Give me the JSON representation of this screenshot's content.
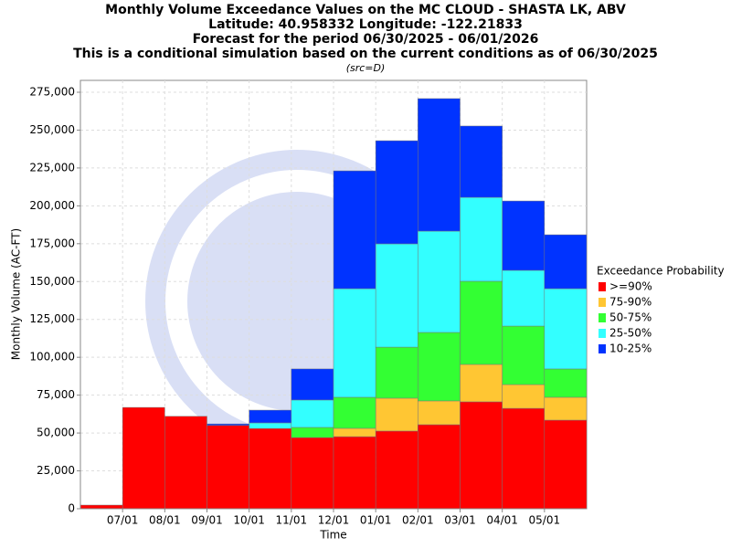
{
  "chart_data": {
    "type": "stacked_bar",
    "title_lines": [
      "Monthly Volume Exceedance Values on the MC CLOUD - SHASTA LK, ABV",
      "Latitude: 40.958332 Longitude: -122.21833",
      "Forecast for the period 06/30/2025 - 06/01/2026",
      "This is a conditional simulation based on the current conditions as of 06/30/2025"
    ],
    "note": "(src=D)",
    "x_label": "Time",
    "y_label": "Monthly Volume (AC-FT)",
    "legend_title": "Exceedance Probability",
    "categories": [
      null,
      null,
      null,
      null,
      null,
      null,
      null,
      null,
      null,
      null,
      null,
      null
    ],
    "xticks": [
      "07/01",
      "08/01",
      "09/01",
      "10/01",
      "11/01",
      "12/01",
      "01/01",
      "02/01",
      "03/01",
      "04/01",
      "05/01"
    ],
    "series": [
      {
        "name": ">=90%",
        "color": "#ff0000",
        "values": [
          2400,
          66900,
          61000,
          55000,
          53000,
          47000,
          47600,
          51300,
          55500,
          70600,
          66300,
          58500
        ]
      },
      {
        "name": "75-90%",
        "color": "#ffc633",
        "values": [
          0,
          0,
          0,
          0,
          0,
          0,
          5500,
          21700,
          15700,
          24700,
          15700,
          15100
        ]
      },
      {
        "name": "50-75%",
        "color": "#33ff33",
        "values": [
          0,
          0,
          0,
          0,
          0,
          6700,
          20500,
          33700,
          45200,
          54900,
          38600,
          18700
        ]
      },
      {
        "name": "25-50%",
        "color": "#33ffff",
        "values": [
          0,
          0,
          0,
          0,
          3700,
          18100,
          71700,
          68200,
          66900,
          55400,
          36800,
          53000
        ]
      },
      {
        "name": "10-25%",
        "color": "#0033ff",
        "values": [
          0,
          0,
          0,
          1000,
          8400,
          20500,
          77800,
          68100,
          87500,
          47100,
          45800,
          35600
        ]
      }
    ],
    "ylim": [
      0,
      275000
    ],
    "yticks": [
      0,
      {
        "value": 25000,
        "label": "25,000"
      },
      {
        "value": 50000,
        "label": "50,000"
      },
      {
        "value": 75000,
        "label": "75,000"
      },
      {
        "value": 100000,
        "label": "100,000"
      },
      {
        "value": 125000,
        "label": "125,000"
      },
      {
        "value": 150000,
        "label": "150,000"
      },
      {
        "value": 175000,
        "label": "175,000"
      },
      {
        "value": 200000,
        "label": "200,000"
      },
      {
        "value": 225000,
        "label": "225,000"
      },
      {
        "value": 250000,
        "label": "250,000"
      },
      {
        "value": 275000,
        "label": "275,000"
      }
    ],
    "grid": true,
    "legend": "right"
  }
}
